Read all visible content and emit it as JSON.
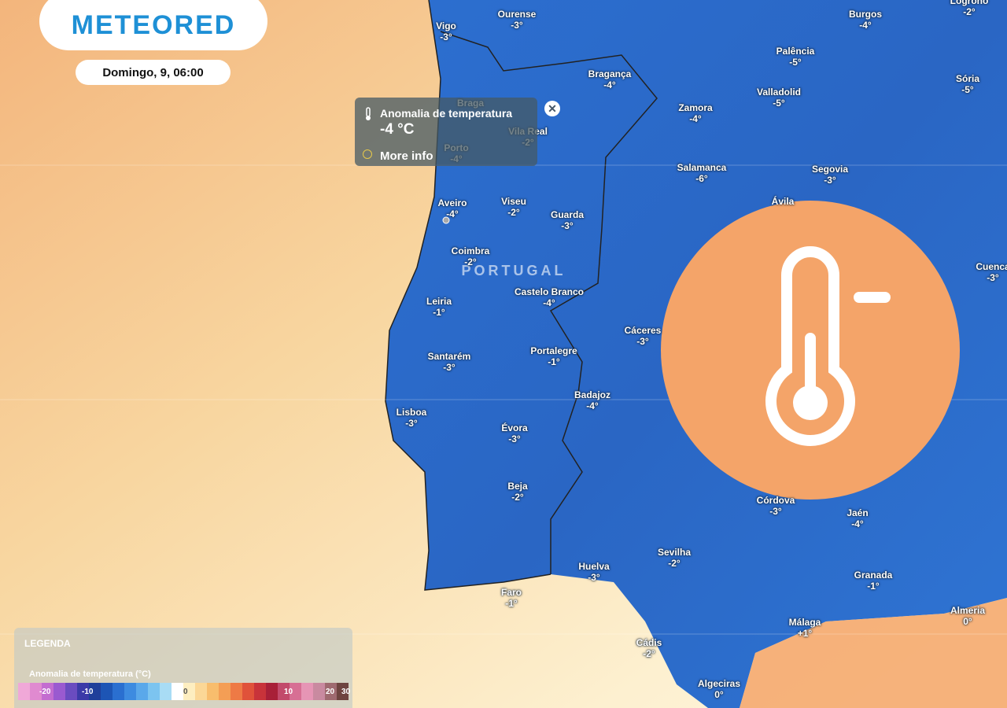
{
  "header": {
    "logo": "METEORED",
    "date": "Domingo, 9, 06:00"
  },
  "popup": {
    "title": "Anomalia de temperatura",
    "value": "-4 °C",
    "link": "More info"
  },
  "map": {
    "country": "PORTUGAL",
    "cities": [
      {
        "name": "Vigo",
        "value": "-3°"
      },
      {
        "name": "Ourense",
        "value": "-3°"
      },
      {
        "name": "Burgos",
        "value": "-4°"
      },
      {
        "name": "Logroño",
        "value": "-2°"
      },
      {
        "name": "Bragança",
        "value": "-4°"
      },
      {
        "name": "Palência",
        "value": "-5°"
      },
      {
        "name": "Sória",
        "value": "-5°"
      },
      {
        "name": "Zamora",
        "value": "-4°"
      },
      {
        "name": "Valladolid",
        "value": "-5°"
      },
      {
        "name": "Braga"
      },
      {
        "name": "Vila Real",
        "value": "-2°"
      },
      {
        "name": "Porto",
        "value": "-4°"
      },
      {
        "name": "Salamanca",
        "value": "-6°"
      },
      {
        "name": "Segovia",
        "value": "-3°"
      },
      {
        "name": "Aveiro",
        "value": "-4°"
      },
      {
        "name": "Viseu",
        "value": "-2°"
      },
      {
        "name": "Guarda",
        "value": "-3°"
      },
      {
        "name": "Ávila"
      },
      {
        "name": "Coimbra",
        "value": "-2°"
      },
      {
        "name": "Cuenca",
        "value": "-3°"
      },
      {
        "name": "Castelo Branco",
        "value": "-4°"
      },
      {
        "name": "Leiria",
        "value": "-1°"
      },
      {
        "name": "Cáceres",
        "value": "-3°"
      },
      {
        "name": "Portalegre",
        "value": "-1°"
      },
      {
        "name": "Santarém",
        "value": "-3°"
      },
      {
        "name": "Badajoz",
        "value": "-4°"
      },
      {
        "name": "Lisboa",
        "value": "-3°"
      },
      {
        "name": "Évora",
        "value": "-3°"
      },
      {
        "name": "Beja",
        "value": "-2°"
      },
      {
        "name": "Córdova",
        "value": "-3°"
      },
      {
        "name": "Jaén",
        "value": "-4°"
      },
      {
        "name": "Sevilha",
        "value": "-2°"
      },
      {
        "name": "Huelva",
        "value": "-3°"
      },
      {
        "name": "Granada",
        "value": "-1°"
      },
      {
        "name": "Faro",
        "value": "-1°"
      },
      {
        "name": "Almeria",
        "value": "0°"
      },
      {
        "name": "Málaga",
        "value": "+1°"
      },
      {
        "name": "Cádis",
        "value": "-2°"
      },
      {
        "name": "Algeciras",
        "value": "0°"
      }
    ]
  },
  "legend": {
    "title": "LEGENDA",
    "subtitle": "Anomalia de temperatura (°C)",
    "ticks": [
      "-20",
      "-10",
      "0",
      "10",
      "20",
      "30"
    ]
  }
}
